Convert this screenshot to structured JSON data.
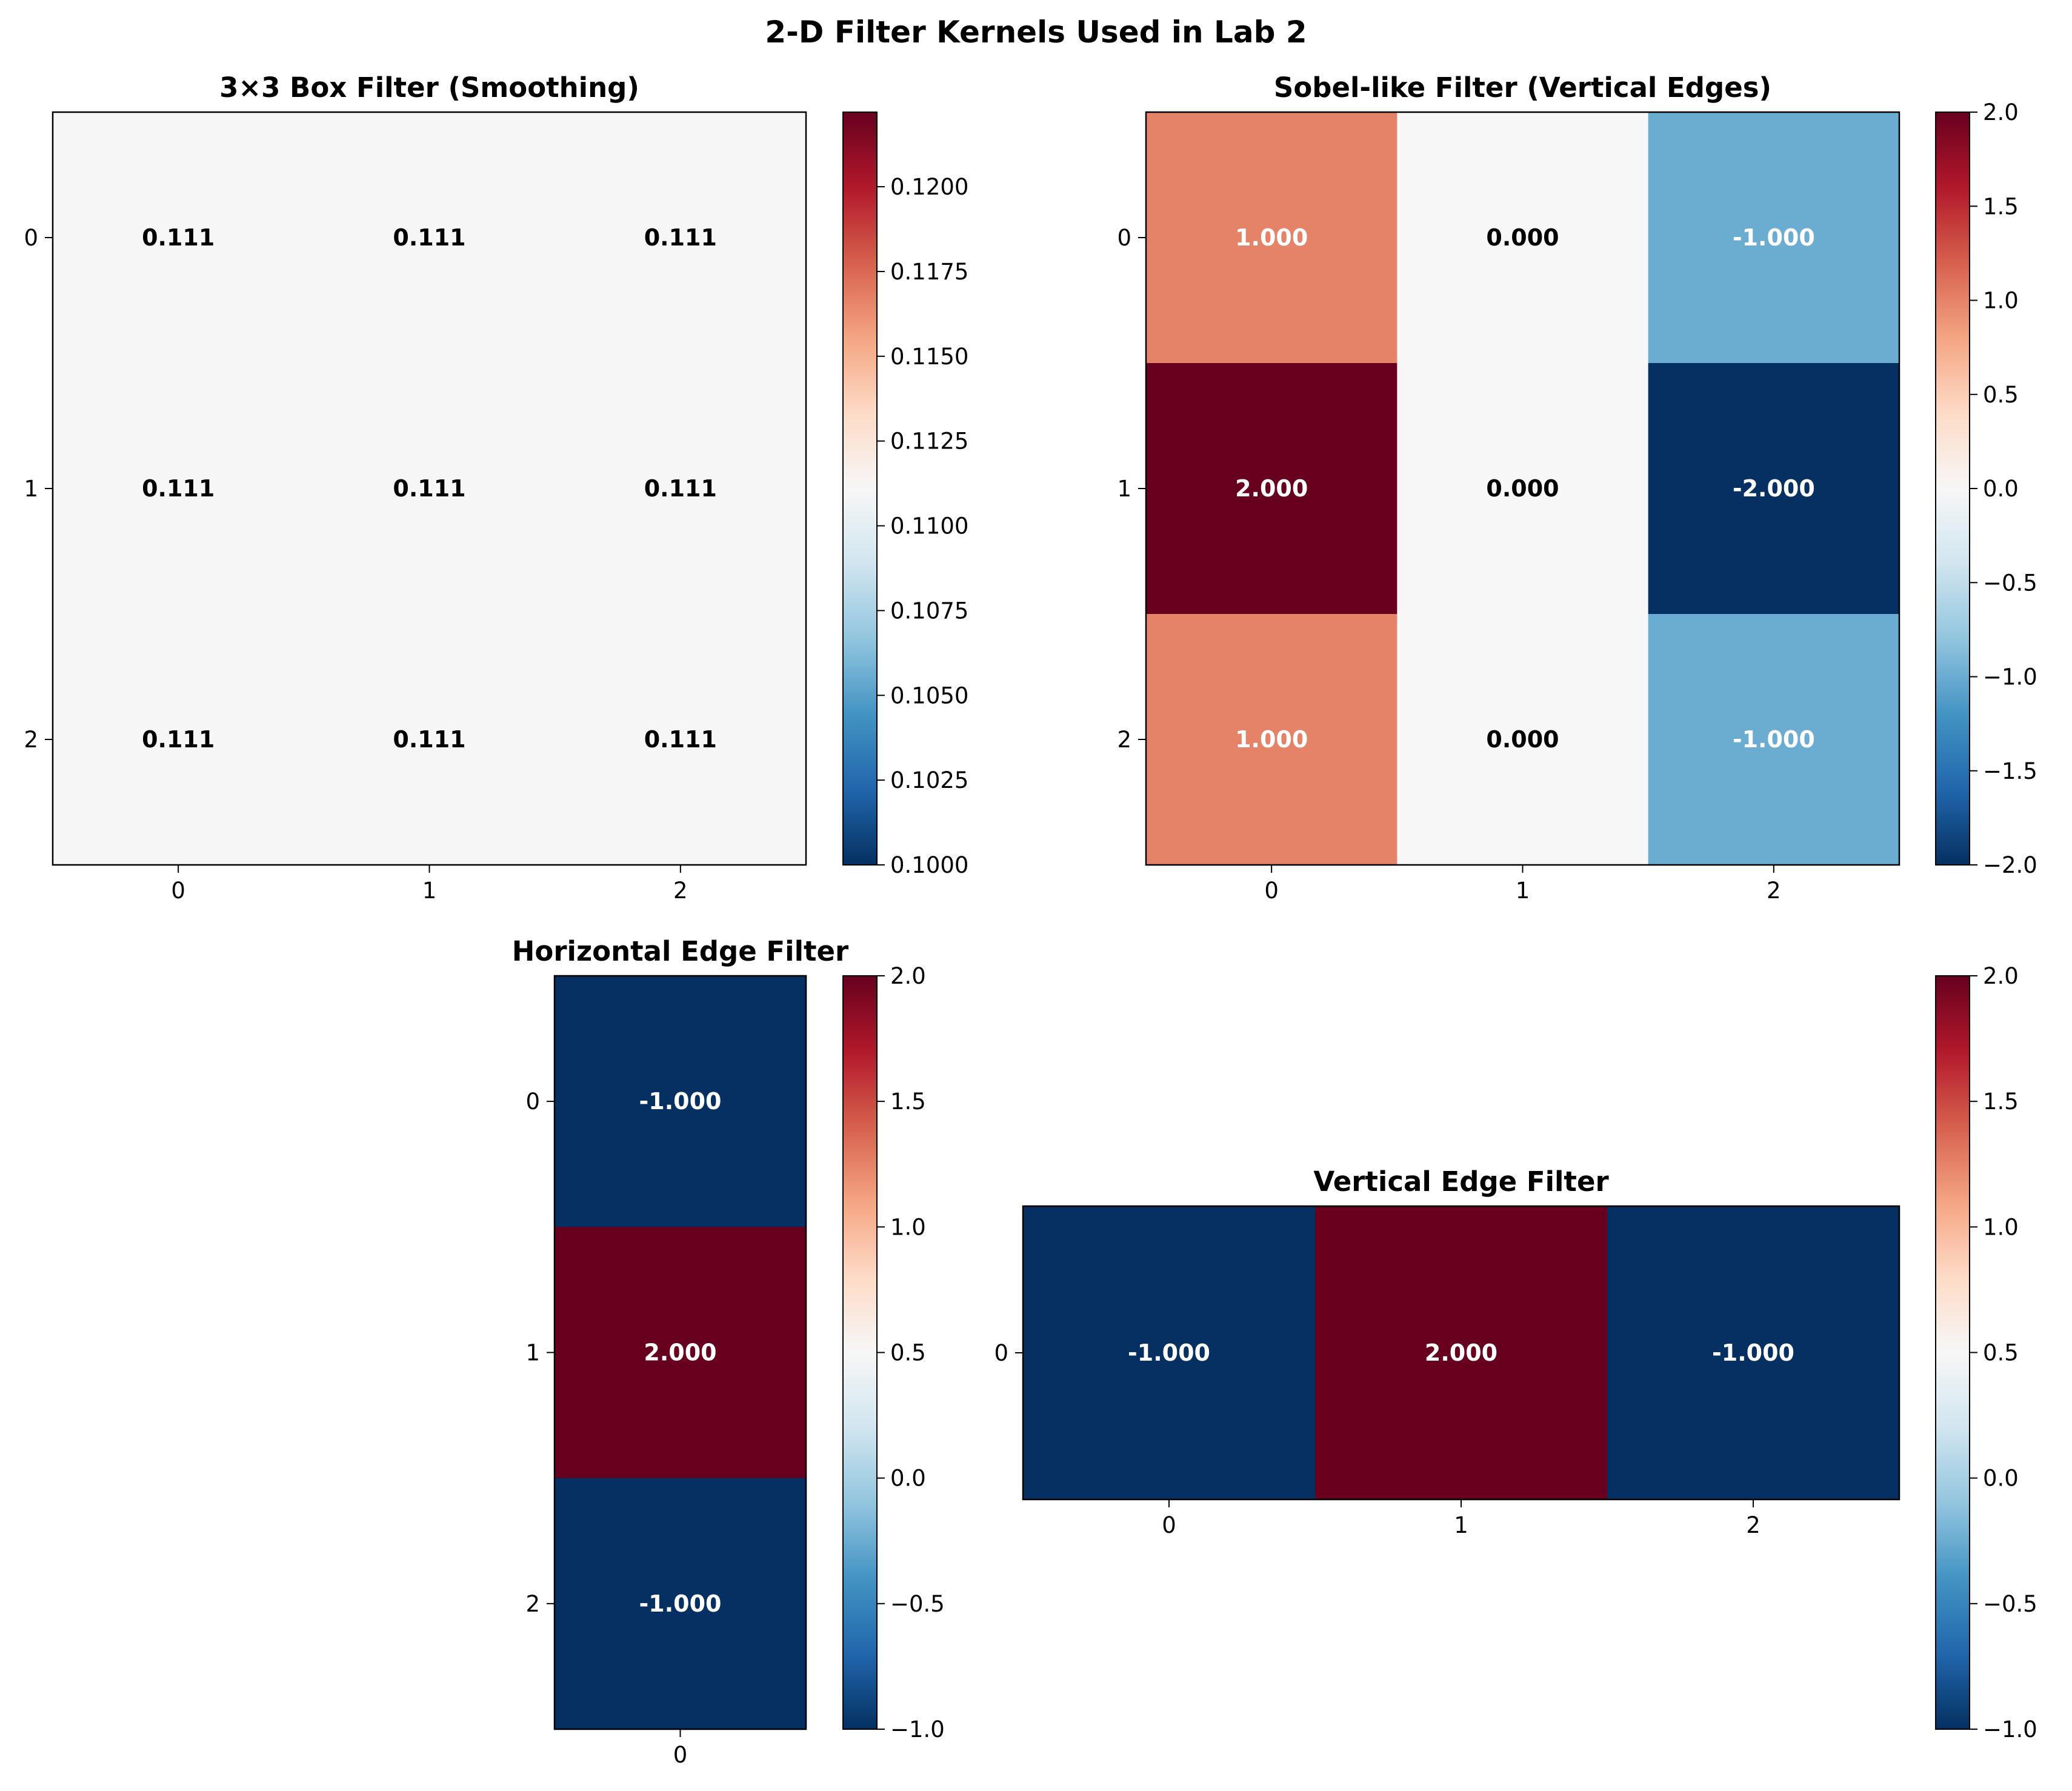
{
  "figure": {
    "title": "2-D Filter Kernels Used in Lab 2"
  },
  "colormap": {
    "name": "RdBu_r",
    "stops": [
      "#053061",
      "#2166ac",
      "#4393c3",
      "#92c5de",
      "#d1e5f0",
      "#f7f7f7",
      "#fddbc7",
      "#f4a582",
      "#d6604d",
      "#b2182b",
      "#67001f"
    ]
  },
  "chart_data": [
    {
      "type": "heatmap",
      "title": "3×3 Box Filter (Smoothing)",
      "xlabel": "",
      "ylabel": "",
      "x_ticks": [
        "0",
        "1",
        "2"
      ],
      "y_ticks": [
        "0",
        "1",
        "2"
      ],
      "values": [
        [
          0.111,
          0.111,
          0.111
        ],
        [
          0.111,
          0.111,
          0.111
        ],
        [
          0.111,
          0.111,
          0.111
        ]
      ],
      "cell_labels": [
        [
          "0.111",
          "0.111",
          "0.111"
        ],
        [
          "0.111",
          "0.111",
          "0.111"
        ],
        [
          "0.111",
          "0.111",
          "0.111"
        ]
      ],
      "cell_color": "#f6f6f6",
      "colorbar": {
        "range": [
          0.1,
          0.1222
        ],
        "ticks": [
          0.1,
          0.1025,
          0.105,
          0.1075,
          0.11,
          0.1125,
          0.115,
          0.1175,
          0.12
        ],
        "tick_labels": [
          "0.1000",
          "0.1025",
          "0.1050",
          "0.1075",
          "0.1100",
          "0.1125",
          "0.1150",
          "0.1175",
          "0.1200"
        ]
      }
    },
    {
      "type": "heatmap",
      "title": "Sobel-like Filter (Vertical Edges)",
      "xlabel": "",
      "ylabel": "",
      "x_ticks": [
        "0",
        "1",
        "2"
      ],
      "y_ticks": [
        "0",
        "1",
        "2"
      ],
      "values": [
        [
          1,
          0,
          -1
        ],
        [
          2,
          0,
          -2
        ],
        [
          1,
          0,
          -1
        ]
      ],
      "cell_labels": [
        [
          "1.000",
          "0.000",
          "-1.000"
        ],
        [
          "2.000",
          "0.000",
          "-2.000"
        ],
        [
          "1.000",
          "0.000",
          "-1.000"
        ]
      ],
      "colorbar": {
        "range": [
          -2,
          2
        ],
        "ticks": [
          -2,
          -1.5,
          -1,
          -0.5,
          0,
          0.5,
          1,
          1.5,
          2
        ],
        "tick_labels": [
          "−2.0",
          "−1.5",
          "−1.0",
          "−0.5",
          "0.0",
          "0.5",
          "1.0",
          "1.5",
          "2.0"
        ]
      }
    },
    {
      "type": "heatmap",
      "title": "Horizontal Edge Filter",
      "xlabel": "",
      "ylabel": "",
      "x_ticks": [
        "0"
      ],
      "y_ticks": [
        "0",
        "1",
        "2"
      ],
      "values": [
        [
          -1
        ],
        [
          2
        ],
        [
          -1
        ]
      ],
      "cell_labels": [
        [
          "-1.000"
        ],
        [
          "2.000"
        ],
        [
          "-1.000"
        ]
      ],
      "colorbar": {
        "range": [
          -1,
          2
        ],
        "ticks": [
          -1,
          -0.5,
          0,
          0.5,
          1,
          1.5,
          2
        ],
        "tick_labels": [
          "−1.0",
          "−0.5",
          "0.0",
          "0.5",
          "1.0",
          "1.5",
          "2.0"
        ]
      }
    },
    {
      "type": "heatmap",
      "title": "Vertical Edge Filter",
      "xlabel": "",
      "ylabel": "",
      "x_ticks": [
        "0",
        "1",
        "2"
      ],
      "y_ticks": [
        "0"
      ],
      "values": [
        [
          -1,
          2,
          -1
        ]
      ],
      "cell_labels": [
        [
          "-1.000",
          "2.000",
          "-1.000"
        ]
      ],
      "colorbar": {
        "range": [
          -1,
          2
        ],
        "ticks": [
          -1,
          -0.5,
          0,
          0.5,
          1,
          1.5,
          2
        ],
        "tick_labels": [
          "−1.0",
          "−0.5",
          "0.0",
          "0.5",
          "1.0",
          "1.5",
          "2.0"
        ]
      }
    }
  ]
}
